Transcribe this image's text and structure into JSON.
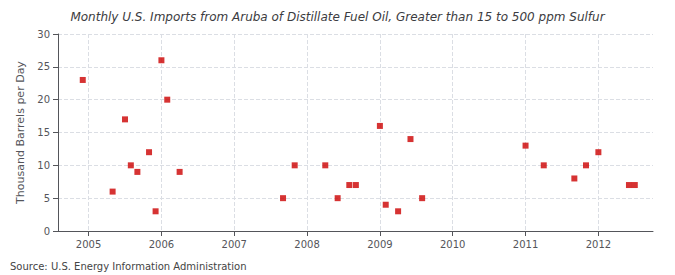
{
  "chart_data": {
    "type": "scatter",
    "title": "Monthly U.S. Imports from Aruba of Distillate Fuel Oil, Greater than 15 to 500 ppm Sulfur",
    "ylabel": "Thousand Barrels per Day",
    "annotations": [
      "Source: U.S. Energy Information Administration"
    ],
    "x": [
      2004.92,
      2005.33,
      2005.5,
      2005.58,
      2005.67,
      2005.83,
      2005.92,
      2006.0,
      2006.08,
      2006.25,
      2007.67,
      2007.83,
      2008.25,
      2008.42,
      2008.58,
      2008.67,
      2009.0,
      2009.08,
      2009.25,
      2009.42,
      2009.58,
      2011.0,
      2011.25,
      2011.67,
      2011.83,
      2012.0,
      2012.42,
      2012.5
    ],
    "values": [
      23,
      6,
      17,
      10,
      9,
      12,
      3,
      26,
      20,
      9,
      5,
      10,
      10,
      5,
      7,
      7,
      16,
      4,
      3,
      14,
      5,
      13,
      10,
      8,
      10,
      12,
      7,
      7
    ],
    "color": "#cc0000",
    "marker": "square",
    "xlim": [
      2004.58,
      2012.75
    ],
    "ylim": [
      0,
      30
    ],
    "xticks": [
      2005,
      2006,
      2007,
      2008,
      2009,
      2010,
      2011,
      2012
    ],
    "yticks": [
      0,
      5,
      10,
      15,
      20,
      25,
      30
    ],
    "grid": true
  }
}
